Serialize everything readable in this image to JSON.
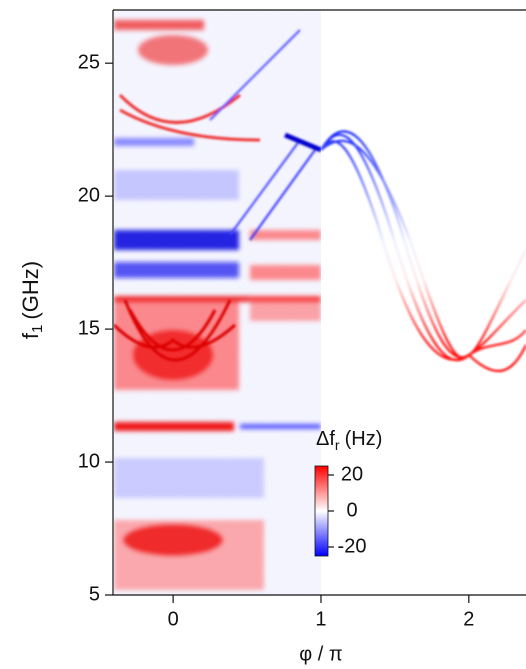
{
  "chart_data": {
    "type": "heatmap",
    "xlabel": "φ / π",
    "ylabel": {
      "main": "f",
      "sub": "1",
      "unit": "(GHz)"
    },
    "xlim": [
      -0.4,
      2.38
    ],
    "xticks": [
      0,
      1,
      2
    ],
    "ylim": [
      5,
      27
    ],
    "yticks": [
      5,
      10,
      15,
      20,
      25
    ],
    "colorbar": {
      "label": {
        "main": "Δf",
        "sub": "r",
        "unit": "(Hz)"
      },
      "clim": [
        -25,
        25
      ],
      "ticks": [
        20,
        0,
        -20
      ],
      "colors": [
        "#0000ff",
        "#ffffff",
        "#ff0000"
      ]
    }
  }
}
